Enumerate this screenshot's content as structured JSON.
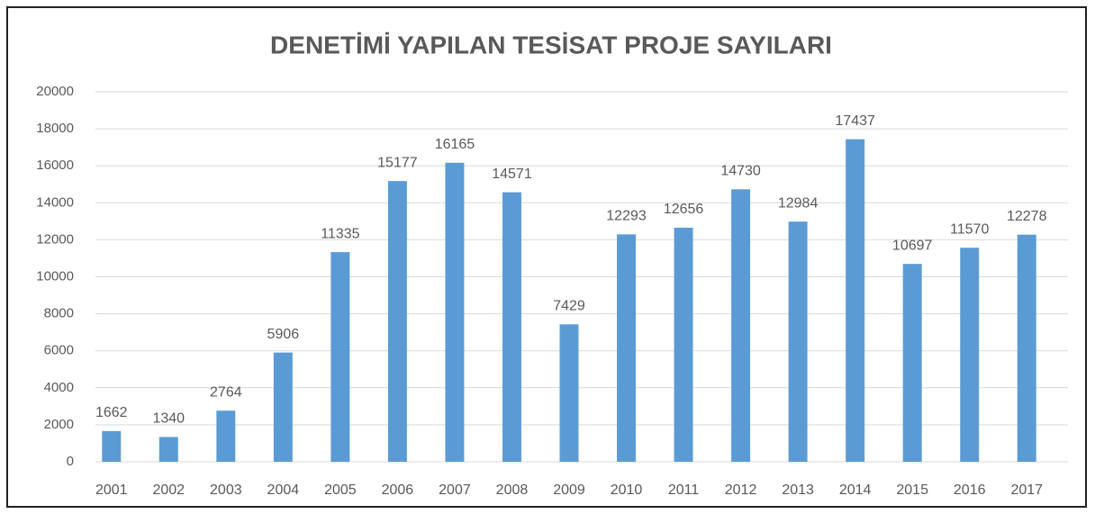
{
  "chart_data": {
    "type": "bar",
    "title": "DENETİMİ YAPILAN TESİSAT PROJE SAYILARI",
    "categories": [
      "2001",
      "2002",
      "2003",
      "2004",
      "2005",
      "2006",
      "2007",
      "2008",
      "2009",
      "2010",
      "2011",
      "2012",
      "2013",
      "2014",
      "2015",
      "2016",
      "2017"
    ],
    "values": [
      1662,
      1340,
      2764,
      5906,
      11335,
      15177,
      16165,
      14571,
      7429,
      12293,
      12656,
      14730,
      12984,
      17437,
      10697,
      11570,
      12278
    ],
    "color": "#5b9bd5",
    "ylim": [
      0,
      20000
    ],
    "yticks": [
      0,
      2000,
      4000,
      6000,
      8000,
      10000,
      12000,
      14000,
      16000,
      18000,
      20000
    ],
    "grid": true
  }
}
